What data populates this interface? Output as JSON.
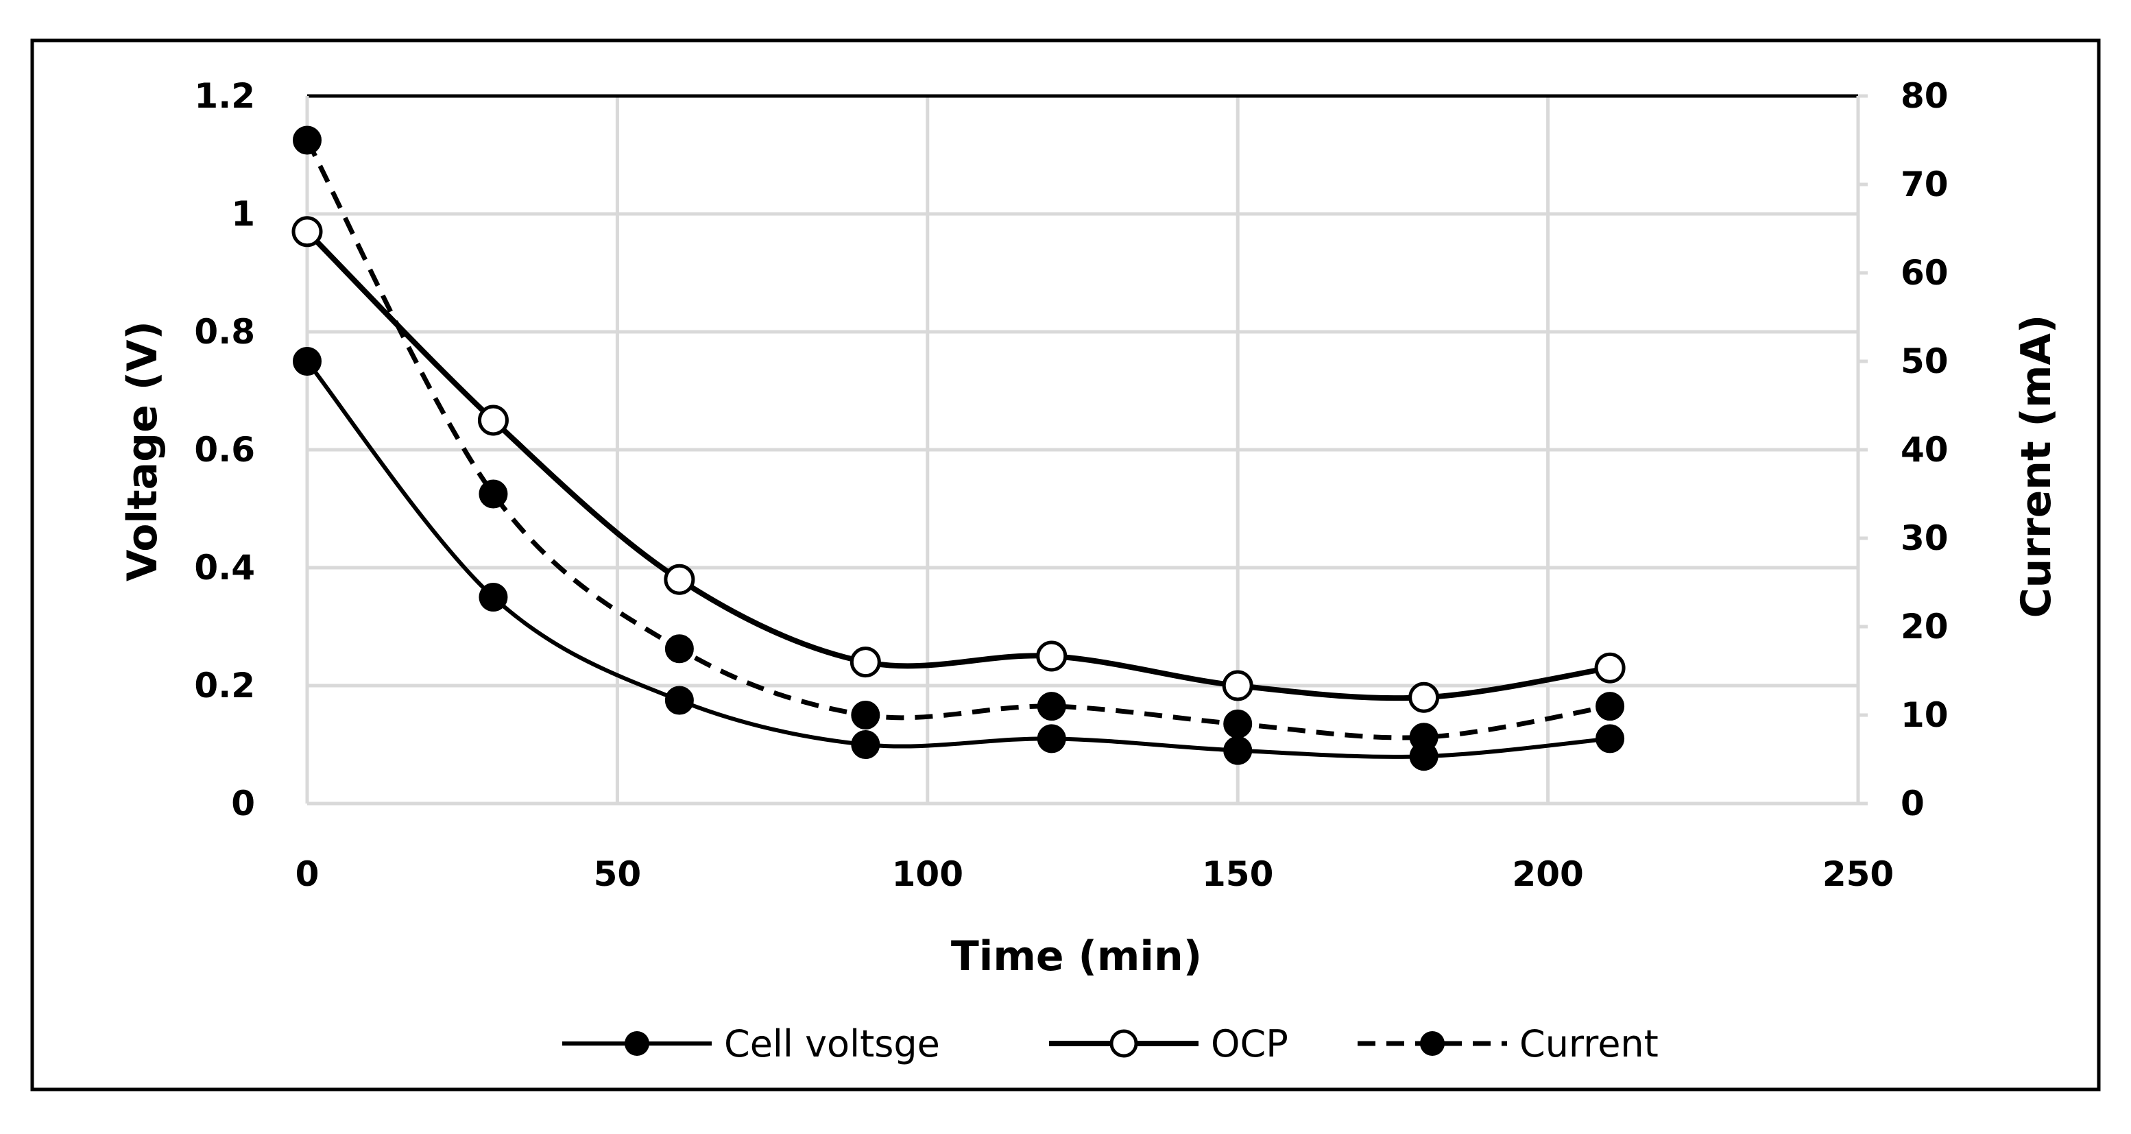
{
  "chart_data": {
    "type": "line",
    "title": "",
    "xlabel": "Time (min)",
    "ylabel": "Voltage (V)",
    "y2label": "Current (mA)",
    "xlim": [
      0,
      250
    ],
    "ylim": [
      0,
      1.2
    ],
    "y2lim": [
      0,
      80
    ],
    "x_ticks": [
      0,
      50,
      100,
      150,
      200,
      250
    ],
    "y_ticks": [
      "0",
      "0.2",
      "0.4",
      "0.6",
      "0.8",
      "1",
      "1.2"
    ],
    "y2_ticks": [
      0,
      10,
      20,
      30,
      40,
      50,
      60,
      70,
      80
    ],
    "grid": true,
    "legend_position": "bottom",
    "x": [
      0,
      30,
      60,
      90,
      120,
      150,
      180,
      210
    ],
    "series": [
      {
        "name": "Cell voltsge",
        "axis": "left",
        "marker": "filled",
        "line": "solid",
        "values": [
          0.75,
          0.35,
          0.175,
          0.1,
          0.11,
          0.09,
          0.08,
          0.11
        ]
      },
      {
        "name": "OCP",
        "axis": "left",
        "marker": "open",
        "line": "solid",
        "values": [
          0.97,
          0.65,
          0.38,
          0.24,
          0.25,
          0.2,
          0.18,
          0.23
        ]
      },
      {
        "name": "Current",
        "axis": "right",
        "marker": "filled",
        "line": "dashed",
        "values": [
          75,
          35,
          17.5,
          10,
          11,
          9,
          7.5,
          11
        ]
      }
    ]
  }
}
